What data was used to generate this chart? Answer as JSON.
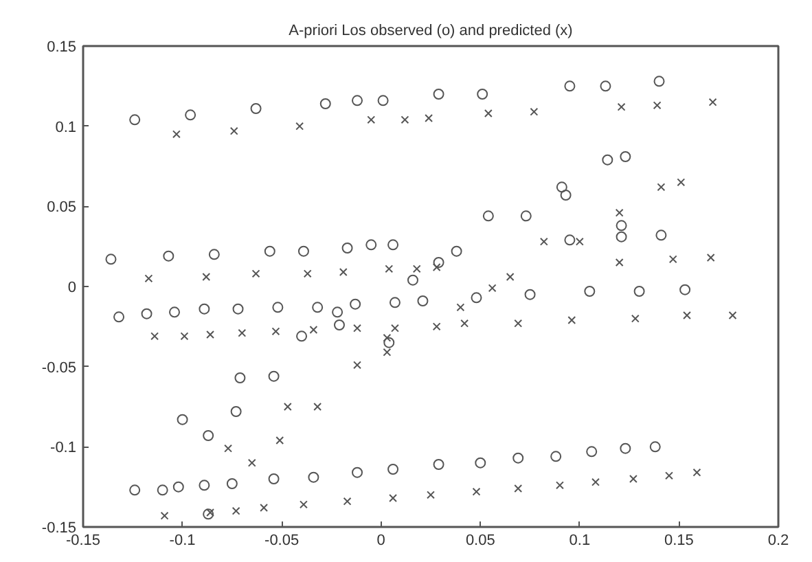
{
  "chart_data": {
    "type": "scatter",
    "title": "A-priori Los observed (o) and predicted (x)",
    "xlim": [
      -0.15,
      0.2
    ],
    "ylim": [
      -0.15,
      0.15
    ],
    "xticks": [
      -0.15,
      -0.1,
      -0.05,
      0,
      0.05,
      0.1,
      0.15,
      0.2
    ],
    "yticks": [
      -0.15,
      -0.1,
      -0.05,
      0,
      0.05,
      0.1,
      0.15
    ],
    "grid": false,
    "series": [
      {
        "marker": "circle",
        "color": "#555555",
        "x": [
          -0.124,
          -0.096,
          -0.063,
          -0.028,
          -0.012,
          0.001,
          0.029,
          0.051,
          0.095,
          0.113,
          0.14,
          -0.136,
          -0.107,
          -0.084,
          -0.056,
          -0.039,
          -0.017,
          -0.005,
          0.006,
          0.016,
          0.029,
          0.038,
          0.114,
          0.123,
          0.091,
          0.093,
          0.054,
          0.073,
          0.121,
          0.121,
          0.095,
          0.141,
          0.048,
          0.075,
          0.105,
          0.13,
          0.153,
          0.021,
          -0.132,
          -0.118,
          -0.104,
          -0.089,
          -0.072,
          -0.052,
          -0.032,
          -0.022,
          -0.013,
          0.007,
          -0.04,
          -0.021,
          0.004,
          -0.071,
          -0.054,
          -0.073,
          -0.1,
          -0.087,
          -0.124,
          -0.11,
          -0.102,
          -0.089,
          -0.075,
          -0.054,
          -0.034,
          -0.012,
          0.006,
          0.029,
          0.05,
          0.069,
          0.088,
          0.106,
          0.123,
          0.138,
          -0.087
        ],
        "values": [
          0.104,
          0.107,
          0.111,
          0.114,
          0.116,
          0.116,
          0.12,
          0.12,
          0.125,
          0.125,
          0.128,
          0.017,
          0.019,
          0.02,
          0.022,
          0.022,
          0.024,
          0.026,
          0.026,
          0.004,
          0.015,
          0.022,
          0.079,
          0.081,
          0.062,
          0.057,
          0.044,
          0.044,
          0.038,
          0.031,
          0.029,
          0.032,
          -0.007,
          -0.005,
          -0.003,
          -0.003,
          -0.002,
          -0.009,
          -0.019,
          -0.017,
          -0.016,
          -0.014,
          -0.014,
          -0.013,
          -0.013,
          -0.016,
          -0.011,
          -0.01,
          -0.031,
          -0.024,
          -0.035,
          -0.057,
          -0.056,
          -0.078,
          -0.083,
          -0.093,
          -0.127,
          -0.127,
          -0.125,
          -0.124,
          -0.123,
          -0.12,
          -0.119,
          -0.116,
          -0.114,
          -0.111,
          -0.11,
          -0.107,
          -0.106,
          -0.103,
          -0.101,
          -0.1,
          -0.142
        ]
      },
      {
        "marker": "x",
        "color": "#555555",
        "x": [
          -0.103,
          -0.074,
          -0.041,
          -0.005,
          0.012,
          0.024,
          0.054,
          0.077,
          0.121,
          0.139,
          0.167,
          -0.117,
          -0.088,
          -0.063,
          -0.037,
          -0.019,
          0.004,
          0.018,
          0.028,
          0.141,
          0.151,
          0.12,
          0.1,
          0.082,
          0.12,
          0.147,
          0.166,
          0.065,
          0.056,
          0.04,
          0.028,
          0.042,
          0.069,
          0.096,
          0.128,
          0.154,
          0.177,
          -0.114,
          -0.099,
          -0.086,
          -0.07,
          -0.053,
          -0.034,
          -0.012,
          0.007,
          0.003,
          0.003,
          -0.012,
          -0.047,
          -0.032,
          -0.077,
          -0.065,
          -0.051,
          -0.109,
          -0.086,
          -0.073,
          -0.059,
          -0.039,
          -0.017,
          0.006,
          0.025,
          0.048,
          0.069,
          0.09,
          0.108,
          0.127,
          0.145,
          0.159
        ],
        "values": [
          0.095,
          0.097,
          0.1,
          0.104,
          0.104,
          0.105,
          0.108,
          0.109,
          0.112,
          0.113,
          0.115,
          0.005,
          0.006,
          0.008,
          0.008,
          0.009,
          0.011,
          0.011,
          0.012,
          0.062,
          0.065,
          0.046,
          0.028,
          0.028,
          0.015,
          0.017,
          0.018,
          0.006,
          -0.001,
          -0.013,
          -0.025,
          -0.023,
          -0.023,
          -0.021,
          -0.02,
          -0.018,
          -0.018,
          -0.031,
          -0.031,
          -0.03,
          -0.029,
          -0.028,
          -0.027,
          -0.026,
          -0.026,
          -0.032,
          -0.041,
          -0.049,
          -0.075,
          -0.075,
          -0.101,
          -0.11,
          -0.096,
          -0.143,
          -0.141,
          -0.14,
          -0.138,
          -0.136,
          -0.134,
          -0.132,
          -0.13,
          -0.128,
          -0.126,
          -0.124,
          -0.122,
          -0.12,
          -0.118,
          -0.116
        ]
      }
    ]
  }
}
